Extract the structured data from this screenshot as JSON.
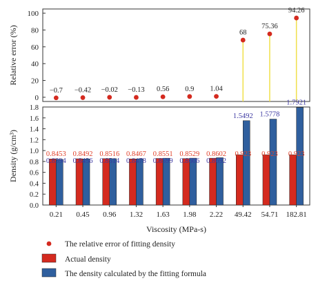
{
  "chart_data": [
    {
      "type": "scatter",
      "ylabel": "Relative error (%)",
      "ylim": [
        -5,
        105
      ],
      "yticks": [
        0,
        20,
        40,
        60,
        80,
        100
      ],
      "grid": false,
      "categories": [
        "0.21",
        "0.45",
        "0.96",
        "1.32",
        "1.63",
        "1.98",
        "2.22",
        "49.42",
        "54.71",
        "182.81"
      ],
      "series": [
        {
          "name": "The relative error of fitting density",
          "values": [
            -0.7,
            -0.42,
            -0.02,
            -0.13,
            0.56,
            0.9,
            1.04,
            68,
            75.36,
            94.26
          ],
          "labels": [
            "−0.7",
            "−0.42",
            "−0.02",
            "−0.13",
            "0.56",
            "0.9",
            "1.04",
            "68",
            "75.36",
            "94.26"
          ]
        }
      ],
      "colors": {
        "point": "#d42a1f",
        "stem": "#f0e04a"
      }
    },
    {
      "type": "bar",
      "xlabel": "Viscosity (MPa-s)",
      "ylabel": "Density (g/cm³)",
      "ylim": [
        0,
        1.8
      ],
      "yticks": [
        0,
        0.2,
        0.4,
        0.6,
        0.8,
        1.0,
        1.2,
        1.4,
        1.6,
        1.8
      ],
      "ytick_labels": [
        "0.0",
        "0.2",
        "0.4",
        "0.6",
        "0.8",
        "1.0",
        "1.2",
        "1.4",
        "1.6",
        "1.8"
      ],
      "grid": false,
      "categories": [
        "0.21",
        "0.45",
        "0.96",
        "1.32",
        "1.63",
        "1.98",
        "2.22",
        "49.42",
        "54.71",
        "182.81"
      ],
      "series": [
        {
          "name": "Actual density",
          "values": [
            0.8453,
            0.8492,
            0.8516,
            0.8467,
            0.8551,
            0.8529,
            0.8602,
            0.9233,
            0.9233,
            0.9233
          ],
          "labels": [
            "0.8453",
            "0.8492",
            "0.8516",
            "0.8467",
            "0.8551",
            "0.8529",
            "0.8602",
            "0.923",
            "0.923",
            "0.923"
          ],
          "color": "#d42a1f"
        },
        {
          "name": "The density calculated by the fitting formula",
          "values": [
            0.8394,
            0.8456,
            0.8514,
            0.8478,
            0.8599,
            0.8606,
            0.8692,
            1.5492,
            1.5778,
            1.7921
          ],
          "labels": [
            "0.8394",
            "0.8456",
            "0.8514",
            "0.8478",
            "0.8599",
            "0.8606",
            "0.8692",
            "1.5492",
            "1.5778",
            "1.7921"
          ],
          "color": "#2f5f9e"
        }
      ],
      "label_colors": {
        "actual": "#e0402a",
        "fitted": "#3a36a0"
      }
    }
  ],
  "legend": {
    "items": [
      {
        "marker": "dot",
        "label": "The relative error of fitting density",
        "color": "#d42a1f"
      },
      {
        "marker": "box",
        "label": "Actual density",
        "color": "#d42a1f"
      },
      {
        "marker": "box",
        "label": "The density calculated by the fitting formula",
        "color": "#2f5f9e"
      }
    ]
  }
}
